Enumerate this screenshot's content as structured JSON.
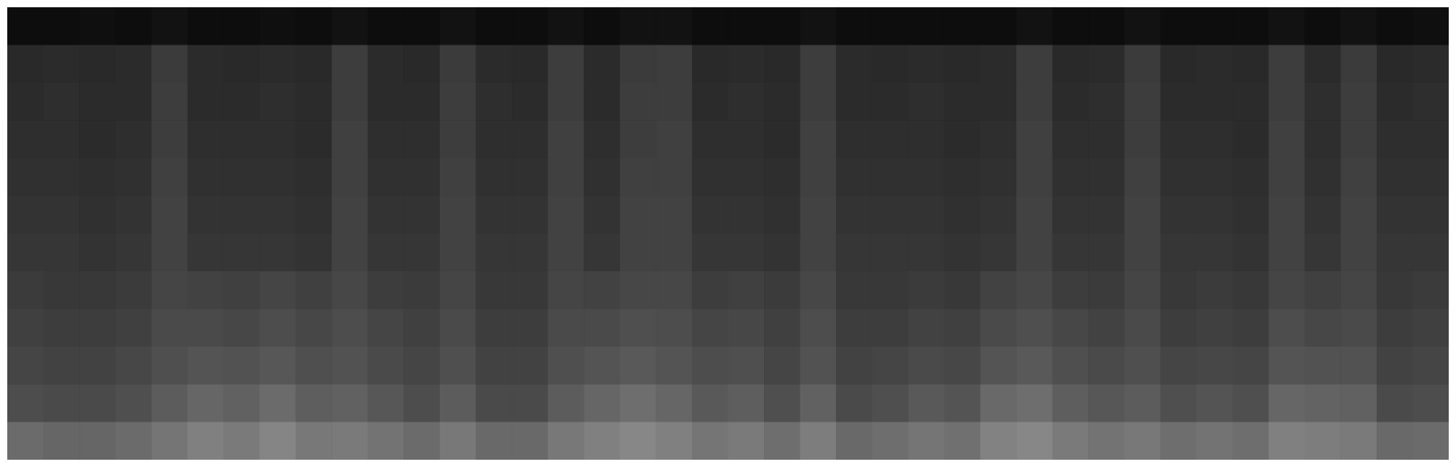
{
  "chart_data": {
    "type": "heatmap",
    "tick_labels": false,
    "color": "#ffffff",
    "zlim": [
      0,
      1
    ],
    "cells": [
      [
        0.05,
        0.05,
        0.06,
        0.05,
        0.07,
        0.05,
        0.05,
        0.06,
        0.05,
        0.07,
        0.05,
        0.05,
        0.07,
        0.05,
        0.05,
        0.07,
        0.05,
        0.07,
        0.07,
        0.05,
        0.05,
        0.05,
        0.07,
        0.05,
        0.05,
        0.05,
        0.05,
        0.05,
        0.07,
        0.05,
        0.05,
        0.07,
        0.05,
        0.05,
        0.05,
        0.07,
        0.05,
        0.07,
        0.05,
        0.06
      ],
      [
        0.16,
        0.17,
        0.16,
        0.17,
        0.23,
        0.17,
        0.16,
        0.17,
        0.16,
        0.24,
        0.17,
        0.16,
        0.23,
        0.17,
        0.16,
        0.24,
        0.17,
        0.23,
        0.24,
        0.16,
        0.17,
        0.16,
        0.24,
        0.17,
        0.16,
        0.17,
        0.16,
        0.17,
        0.24,
        0.16,
        0.17,
        0.23,
        0.16,
        0.17,
        0.16,
        0.24,
        0.17,
        0.23,
        0.16,
        0.17
      ],
      [
        0.17,
        0.18,
        0.17,
        0.17,
        0.24,
        0.17,
        0.17,
        0.18,
        0.17,
        0.24,
        0.17,
        0.17,
        0.24,
        0.18,
        0.17,
        0.24,
        0.17,
        0.24,
        0.24,
        0.17,
        0.18,
        0.17,
        0.24,
        0.17,
        0.17,
        0.18,
        0.17,
        0.17,
        0.24,
        0.17,
        0.18,
        0.24,
        0.17,
        0.17,
        0.17,
        0.24,
        0.18,
        0.24,
        0.17,
        0.18
      ],
      [
        0.18,
        0.18,
        0.17,
        0.18,
        0.24,
        0.18,
        0.18,
        0.18,
        0.17,
        0.25,
        0.18,
        0.18,
        0.24,
        0.18,
        0.18,
        0.25,
        0.18,
        0.24,
        0.25,
        0.18,
        0.18,
        0.17,
        0.25,
        0.18,
        0.18,
        0.18,
        0.17,
        0.18,
        0.25,
        0.18,
        0.18,
        0.24,
        0.18,
        0.18,
        0.17,
        0.25,
        0.18,
        0.24,
        0.18,
        0.18
      ],
      [
        0.19,
        0.19,
        0.18,
        0.19,
        0.25,
        0.19,
        0.19,
        0.19,
        0.18,
        0.25,
        0.19,
        0.19,
        0.25,
        0.19,
        0.19,
        0.25,
        0.19,
        0.25,
        0.25,
        0.19,
        0.19,
        0.18,
        0.25,
        0.19,
        0.19,
        0.19,
        0.18,
        0.19,
        0.25,
        0.19,
        0.19,
        0.25,
        0.19,
        0.19,
        0.18,
        0.25,
        0.19,
        0.25,
        0.19,
        0.19
      ],
      [
        0.2,
        0.2,
        0.19,
        0.2,
        0.26,
        0.2,
        0.2,
        0.2,
        0.19,
        0.26,
        0.2,
        0.2,
        0.26,
        0.2,
        0.2,
        0.26,
        0.2,
        0.26,
        0.26,
        0.2,
        0.2,
        0.19,
        0.26,
        0.2,
        0.2,
        0.2,
        0.19,
        0.2,
        0.26,
        0.2,
        0.2,
        0.26,
        0.2,
        0.2,
        0.19,
        0.26,
        0.2,
        0.26,
        0.2,
        0.2
      ],
      [
        0.21,
        0.21,
        0.2,
        0.21,
        0.26,
        0.21,
        0.21,
        0.21,
        0.2,
        0.26,
        0.21,
        0.21,
        0.26,
        0.21,
        0.21,
        0.26,
        0.21,
        0.26,
        0.26,
        0.21,
        0.21,
        0.2,
        0.26,
        0.21,
        0.21,
        0.21,
        0.2,
        0.21,
        0.26,
        0.21,
        0.21,
        0.26,
        0.21,
        0.21,
        0.2,
        0.26,
        0.21,
        0.26,
        0.21,
        0.21
      ],
      [
        0.23,
        0.22,
        0.22,
        0.23,
        0.27,
        0.26,
        0.25,
        0.27,
        0.25,
        0.28,
        0.24,
        0.23,
        0.27,
        0.22,
        0.22,
        0.27,
        0.26,
        0.28,
        0.28,
        0.24,
        0.25,
        0.23,
        0.28,
        0.22,
        0.22,
        0.23,
        0.22,
        0.26,
        0.28,
        0.24,
        0.23,
        0.27,
        0.22,
        0.23,
        0.22,
        0.27,
        0.25,
        0.27,
        0.22,
        0.23
      ],
      [
        0.25,
        0.24,
        0.24,
        0.25,
        0.29,
        0.29,
        0.28,
        0.3,
        0.28,
        0.3,
        0.27,
        0.25,
        0.29,
        0.24,
        0.24,
        0.29,
        0.29,
        0.31,
        0.3,
        0.27,
        0.28,
        0.25,
        0.3,
        0.24,
        0.24,
        0.26,
        0.25,
        0.29,
        0.31,
        0.28,
        0.26,
        0.29,
        0.24,
        0.25,
        0.24,
        0.3,
        0.28,
        0.29,
        0.24,
        0.25
      ],
      [
        0.27,
        0.26,
        0.26,
        0.28,
        0.31,
        0.33,
        0.32,
        0.34,
        0.31,
        0.32,
        0.29,
        0.27,
        0.31,
        0.26,
        0.26,
        0.31,
        0.33,
        0.35,
        0.33,
        0.3,
        0.31,
        0.27,
        0.32,
        0.26,
        0.27,
        0.29,
        0.28,
        0.33,
        0.35,
        0.31,
        0.29,
        0.31,
        0.27,
        0.28,
        0.27,
        0.33,
        0.32,
        0.32,
        0.26,
        0.27
      ],
      [
        0.3,
        0.29,
        0.29,
        0.31,
        0.36,
        0.4,
        0.38,
        0.42,
        0.37,
        0.38,
        0.34,
        0.3,
        0.36,
        0.29,
        0.29,
        0.36,
        0.4,
        0.43,
        0.4,
        0.35,
        0.37,
        0.31,
        0.38,
        0.29,
        0.31,
        0.35,
        0.33,
        0.41,
        0.43,
        0.37,
        0.34,
        0.36,
        0.31,
        0.33,
        0.31,
        0.4,
        0.39,
        0.38,
        0.29,
        0.3
      ],
      [
        0.42,
        0.4,
        0.4,
        0.42,
        0.46,
        0.5,
        0.48,
        0.52,
        0.47,
        0.48,
        0.45,
        0.42,
        0.47,
        0.41,
        0.41,
        0.47,
        0.5,
        0.53,
        0.5,
        0.46,
        0.48,
        0.43,
        0.49,
        0.41,
        0.43,
        0.46,
        0.44,
        0.51,
        0.53,
        0.48,
        0.45,
        0.47,
        0.43,
        0.45,
        0.43,
        0.5,
        0.49,
        0.48,
        0.41,
        0.42
      ]
    ]
  }
}
